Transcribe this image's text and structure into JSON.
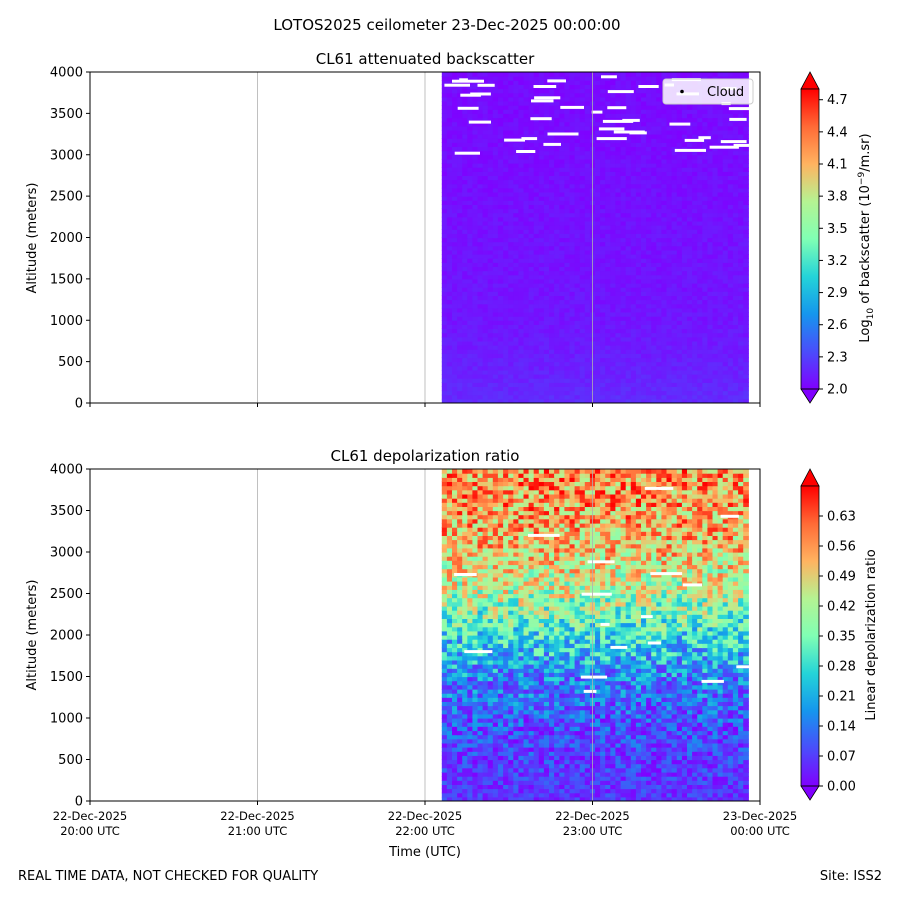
{
  "figure": {
    "suptitle": "LOTOS2025 ceilometer 23-Dec-2025 00:00:00",
    "footer_left": "REAL TIME DATA, NOT CHECKED FOR QUALITY",
    "footer_right": "Site: ISS2"
  },
  "chart_data": [
    {
      "type": "heatmap",
      "title": "CL61 attenuated backscatter",
      "xlabel": "",
      "ylabel": "Altitude (meters)",
      "ylim": [
        0,
        4000
      ],
      "yticks": [
        0,
        500,
        1000,
        1500,
        2000,
        2500,
        3000,
        3500,
        4000
      ],
      "xlim_hours_utc": [
        20.0,
        24.0
      ],
      "data_extent_hours_utc": [
        22.1,
        23.93
      ],
      "grid": "x-major",
      "legend": {
        "location": "upper-right",
        "entries": [
          "Cloud"
        ]
      },
      "colorbar": {
        "label_prefix": "Log",
        "label_sub": "10",
        "label_mid": " of backscatter (10",
        "label_sup": "−9",
        "label_suffix": "/m.sr)",
        "min": 2.0,
        "max": 4.8,
        "extend": "both",
        "ticks": [
          "2.0",
          "2.3",
          "2.6",
          "2.9",
          "3.2",
          "3.5",
          "3.8",
          "4.1",
          "4.4",
          "4.7"
        ],
        "cmap": "rainbow"
      },
      "profile_description": "Values near colorbar minimum (~2.0-2.2) throughout; slightly higher (~2.2) below 400 m; scattered cloud flags (white) above 3000 m",
      "profile": {
        "altitude": [
          0,
          400,
          1000,
          2000,
          3000,
          4000
        ],
        "value": [
          2.2,
          2.15,
          2.1,
          2.08,
          2.06,
          2.05
        ]
      }
    },
    {
      "type": "heatmap",
      "title": "CL61 depolarization ratio",
      "xlabel": "Time (UTC)",
      "ylabel": "Altitude (meters)",
      "ylim": [
        0,
        4000
      ],
      "yticks": [
        0,
        500,
        1000,
        1500,
        2000,
        2500,
        3000,
        3500,
        4000
      ],
      "xlim_hours_utc": [
        20.0,
        24.0
      ],
      "data_extent_hours_utc": [
        22.1,
        23.93
      ],
      "grid": "x-major",
      "colorbar": {
        "label": "Linear depolarization ratio",
        "min": 0.0,
        "max": 0.7,
        "extend": "both",
        "ticks": [
          "0.00",
          "0.07",
          "0.14",
          "0.21",
          "0.28",
          "0.35",
          "0.42",
          "0.49",
          "0.56",
          "0.63"
        ],
        "cmap": "rainbow"
      },
      "profile": {
        "altitude": [
          0,
          500,
          1000,
          1500,
          2000,
          2500,
          3000,
          3500,
          4000
        ],
        "value": [
          0.06,
          0.07,
          0.1,
          0.16,
          0.28,
          0.42,
          0.5,
          0.55,
          0.57
        ]
      }
    }
  ],
  "x_axis": {
    "ticks": [
      {
        "hour": 20,
        "line1": "22-Dec-2025",
        "line2": "20:00 UTC"
      },
      {
        "hour": 21,
        "line1": "22-Dec-2025",
        "line2": "21:00 UTC"
      },
      {
        "hour": 22,
        "line1": "22-Dec-2025",
        "line2": "22:00 UTC"
      },
      {
        "hour": 23,
        "line1": "22-Dec-2025",
        "line2": "23:00 UTC"
      },
      {
        "hour": 24,
        "line1": "23-Dec-2025",
        "line2": "00:00 UTC"
      }
    ]
  }
}
